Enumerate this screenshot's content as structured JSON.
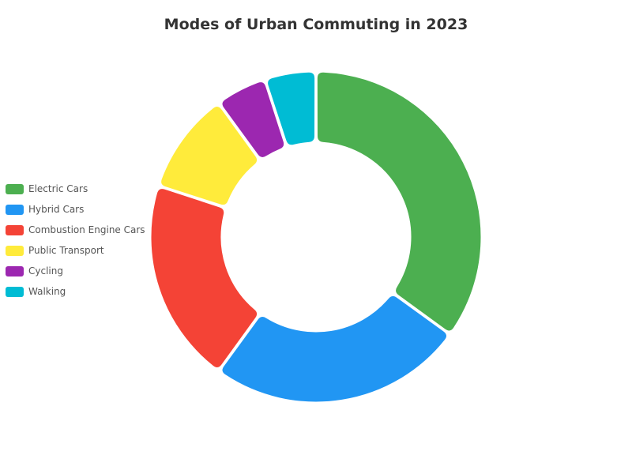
{
  "chart_data": {
    "type": "pie",
    "variant": "donut",
    "title": "Modes of Urban Commuting in 2023",
    "categories": [
      "Electric Cars",
      "Hybrid Cars",
      "Combustion Engine Cars",
      "Public Transport",
      "Cycling",
      "Walking"
    ],
    "values": [
      35,
      25,
      20,
      10,
      5,
      5
    ],
    "colors": [
      "#4caf50",
      "#2196f3",
      "#f44336",
      "#ffeb3b",
      "#9c27b0",
      "#00bcd4"
    ],
    "legend_position": "left"
  }
}
